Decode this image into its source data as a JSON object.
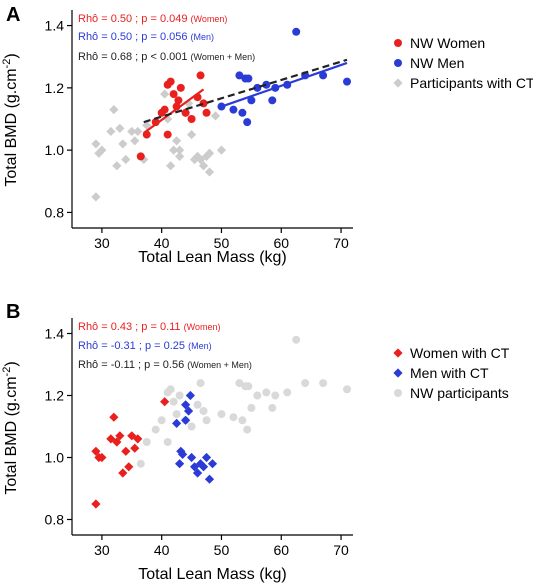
{
  "chart_data": [
    {
      "panel": "A",
      "type": "scatter",
      "xlabel": "Total Lean Mass (kg)",
      "ylabel": "Total BMD (g.cm",
      "ylabel_sup": "-2",
      "ylabel_end": ")",
      "xlim": [
        25,
        72
      ],
      "ylim": [
        0.75,
        1.45
      ],
      "xticks": [
        30,
        40,
        50,
        60,
        70
      ],
      "yticks": [
        0.8,
        1.0,
        1.2,
        1.4
      ],
      "stats": [
        {
          "main": "Rhô = 0.50 ; p = 0.049",
          "group": "(Women)",
          "color": "#e8211f"
        },
        {
          "main": "Rhô = 0.50 ; p = 0.056",
          "group": "(Men)",
          "color": "#2b3bd6"
        },
        {
          "main": "Rhô = 0.68 ; p < 0.001",
          "group": "(Women + Men)",
          "color": "#222222"
        }
      ],
      "legend_position": "right",
      "series": [
        {
          "name": "NW Women",
          "marker": "circle",
          "color": "#e8211f",
          "points": [
            [
              36.5,
              0.98
            ],
            [
              37.5,
              1.05
            ],
            [
              39,
              1.09
            ],
            [
              40,
              1.12
            ],
            [
              40.5,
              1.13
            ],
            [
              41,
              1.21
            ],
            [
              41,
              1.05
            ],
            [
              41.5,
              1.22
            ],
            [
              42,
              1.18
            ],
            [
              42.5,
              1.14
            ],
            [
              42.8,
              1.16
            ],
            [
              43.2,
              1.2
            ],
            [
              44,
              1.12
            ],
            [
              45,
              1.1
            ],
            [
              46,
              1.17
            ],
            [
              46.5,
              1.24
            ],
            [
              47,
              1.15
            ],
            [
              47.5,
              1.12
            ]
          ]
        },
        {
          "name": "NW Men",
          "marker": "circle",
          "color": "#2b3bd6",
          "points": [
            [
              50,
              1.14
            ],
            [
              52,
              1.13
            ],
            [
              53,
              1.24
            ],
            [
              53.5,
              1.12
            ],
            [
              54,
              1.23
            ],
            [
              54.3,
              1.09
            ],
            [
              54.5,
              1.23
            ],
            [
              55,
              1.16
            ],
            [
              56,
              1.2
            ],
            [
              57.5,
              1.21
            ],
            [
              58.5,
              1.16
            ],
            [
              59,
              1.2
            ],
            [
              61,
              1.21
            ],
            [
              62.5,
              1.38
            ],
            [
              64,
              1.24
            ],
            [
              67,
              1.24
            ],
            [
              71,
              1.22
            ]
          ]
        },
        {
          "name": "Participants with CT",
          "marker": "diamond",
          "color": "#cccccc",
          "points": [
            [
              29,
              0.85
            ],
            [
              29,
              1.02
            ],
            [
              29.5,
              0.99
            ],
            [
              30,
              1.0
            ],
            [
              31.5,
              1.06
            ],
            [
              32,
              1.13
            ],
            [
              32.5,
              0.95
            ],
            [
              33,
              1.07
            ],
            [
              33.5,
              1.02
            ],
            [
              34,
              0.97
            ],
            [
              35,
              1.06
            ],
            [
              35.5,
              1.03
            ],
            [
              36,
              1.06
            ],
            [
              37,
              0.97
            ],
            [
              37.5,
              1.08
            ],
            [
              40.5,
              1.18
            ],
            [
              41,
              1.1
            ],
            [
              41.5,
              0.95
            ],
            [
              42,
              1.0
            ],
            [
              42.5,
              1.03
            ],
            [
              43,
              0.98
            ],
            [
              43,
              1.0
            ],
            [
              44,
              1.12
            ],
            [
              44.5,
              1.15
            ],
            [
              45,
              1.05
            ],
            [
              45.5,
              0.97
            ],
            [
              46,
              0.98
            ],
            [
              46.5,
              0.97
            ],
            [
              47,
              0.95
            ],
            [
              47.5,
              0.98
            ],
            [
              48,
              0.99
            ],
            [
              48,
              0.93
            ],
            [
              49,
              1.11
            ],
            [
              50,
              1.0
            ]
          ]
        }
      ],
      "lines": [
        {
          "name": "NW Women fit",
          "color": "#e8211f",
          "dash": false,
          "x": [
            37,
            47
          ],
          "y": [
            1.055,
            1.195
          ]
        },
        {
          "name": "NW Men fit",
          "color": "#2b3bd6",
          "dash": false,
          "x": [
            50,
            71
          ],
          "y": [
            1.14,
            1.28
          ]
        },
        {
          "name": "All fit",
          "color": "#222222",
          "dash": true,
          "x": [
            37,
            71
          ],
          "y": [
            1.09,
            1.29
          ]
        }
      ]
    },
    {
      "panel": "B",
      "type": "scatter",
      "xlabel": "Total Lean Mass (kg)",
      "ylabel": "Total BMD (g.cm",
      "ylabel_sup": "-2",
      "ylabel_end": ")",
      "xlim": [
        25,
        72
      ],
      "ylim": [
        0.75,
        1.45
      ],
      "xticks": [
        30,
        40,
        50,
        60,
        70
      ],
      "yticks": [
        0.8,
        1.0,
        1.2,
        1.4
      ],
      "stats": [
        {
          "main": "Rhô = 0.43 ; p = 0.11",
          "group": "(Women)",
          "color": "#e8211f"
        },
        {
          "main": "Rhô = -0.31 ; p = 0.25",
          "group": "(Men)",
          "color": "#2b3bd6"
        },
        {
          "main": "Rhô = -0.11 ; p = 0.56",
          "group": "(Women + Men)",
          "color": "#222222"
        }
      ],
      "legend_position": "right",
      "series": [
        {
          "name": "Women with CT",
          "marker": "diamond",
          "color": "#e8211f",
          "points": [
            [
              29,
              0.85
            ],
            [
              29,
              1.02
            ],
            [
              29.5,
              1.0
            ],
            [
              30,
              1.0
            ],
            [
              31.5,
              1.06
            ],
            [
              32,
              1.13
            ],
            [
              32.5,
              1.05
            ],
            [
              33,
              1.07
            ],
            [
              33.5,
              0.95
            ],
            [
              34,
              1.02
            ],
            [
              34.5,
              0.97
            ],
            [
              35,
              1.07
            ],
            [
              35.5,
              1.03
            ],
            [
              36,
              1.06
            ],
            [
              40.5,
              1.18
            ]
          ]
        },
        {
          "name": "Men with CT",
          "marker": "diamond",
          "color": "#2b3bd6",
          "points": [
            [
              42.5,
              1.11
            ],
            [
              43,
              0.98
            ],
            [
              43.2,
              1.02
            ],
            [
              43.5,
              1.01
            ],
            [
              44,
              1.12
            ],
            [
              44,
              1.17
            ],
            [
              44.5,
              1.15
            ],
            [
              44.8,
              1.2
            ],
            [
              45,
              1.0
            ],
            [
              45.5,
              0.97
            ],
            [
              46,
              0.95
            ],
            [
              46.5,
              0.98
            ],
            [
              47,
              0.97
            ],
            [
              47.5,
              1.0
            ],
            [
              48,
              0.93
            ],
            [
              48.5,
              0.98
            ]
          ]
        },
        {
          "name": "NW participants",
          "marker": "circle",
          "color": "#d9d9d9",
          "points": [
            [
              36.5,
              0.98
            ],
            [
              37.5,
              1.05
            ],
            [
              39,
              1.09
            ],
            [
              40,
              1.12
            ],
            [
              41,
              1.21
            ],
            [
              41,
              1.05
            ],
            [
              41.5,
              1.22
            ],
            [
              42,
              1.18
            ],
            [
              42.5,
              1.14
            ],
            [
              43,
              1.2
            ],
            [
              44,
              1.12
            ],
            [
              45,
              1.1
            ],
            [
              46,
              1.17
            ],
            [
              46.5,
              1.24
            ],
            [
              47,
              1.15
            ],
            [
              47.5,
              1.12
            ],
            [
              50,
              1.14
            ],
            [
              52,
              1.13
            ],
            [
              53,
              1.24
            ],
            [
              53.5,
              1.12
            ],
            [
              54,
              1.23
            ],
            [
              54.3,
              1.09
            ],
            [
              54.5,
              1.23
            ],
            [
              55,
              1.16
            ],
            [
              56,
              1.2
            ],
            [
              57.5,
              1.21
            ],
            [
              58.5,
              1.16
            ],
            [
              59,
              1.2
            ],
            [
              61,
              1.21
            ],
            [
              62.5,
              1.38
            ],
            [
              64,
              1.24
            ],
            [
              67,
              1.24
            ],
            [
              71,
              1.22
            ]
          ]
        }
      ],
      "lines": []
    }
  ]
}
